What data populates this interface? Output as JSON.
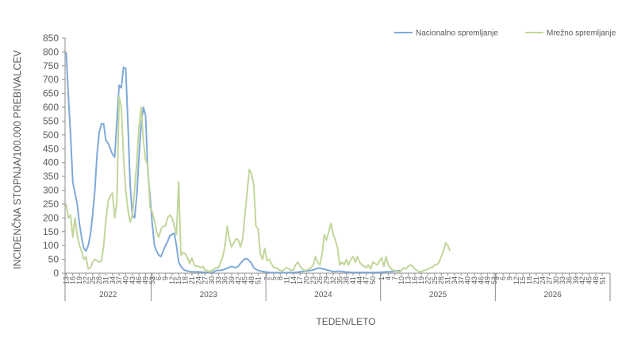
{
  "chart_data": {
    "type": "line",
    "ylabel": "INCIDENČNA  STOPNJA/100.000  PREBIVALCEV",
    "xlabel": "TEDEN/LETO",
    "ylim": [
      0,
      850
    ],
    "yticks": [
      0,
      50,
      100,
      150,
      200,
      250,
      300,
      350,
      400,
      450,
      500,
      550,
      600,
      650,
      700,
      750,
      800,
      850
    ],
    "grid": false,
    "legend_position": "top-right",
    "colors": {
      "Nacionalno spremljanje": "#7fa9d9",
      "Mrežno spremljanje": "#c2d69b"
    },
    "years": [
      {
        "label": "2022",
        "weeks": 39
      },
      {
        "label": "2023",
        "weeks": 52
      },
      {
        "label": "2024",
        "weeks": 52
      },
      {
        "label": "2025",
        "weeks": 52
      },
      {
        "label": "2026",
        "weeks": 52
      }
    ],
    "x_tick_labels": [
      [
        "13",
        "16",
        "19",
        "22",
        "25",
        "28",
        "31",
        "34",
        "37",
        "40",
        "43",
        "46",
        "49",
        "52"
      ],
      [
        "3",
        "6",
        "9",
        "12",
        "15",
        "18",
        "21",
        "24",
        "27",
        "30",
        "33",
        "36",
        "39",
        "42",
        "45",
        "48",
        "51"
      ],
      [
        "2",
        "5",
        "8",
        "11",
        "14",
        "17",
        "20",
        "23",
        "26",
        "29",
        "32",
        "35",
        "38",
        "41",
        "44",
        "47",
        "50"
      ],
      [
        "1",
        "4",
        "7",
        "10",
        "13",
        "16",
        "19",
        "22",
        "25",
        "28",
        "31",
        "34",
        "37",
        "40",
        "43",
        "46",
        "49",
        "52"
      ],
      [
        "3",
        "6",
        "9",
        "12",
        "15",
        "18",
        "21",
        "24",
        "27",
        "30",
        "33",
        "36",
        "39",
        "42",
        "45",
        "48",
        "51"
      ]
    ],
    "series": [
      {
        "name": "Nacionalno spremljanje",
        "values": [
          800,
          640,
          500,
          330,
          290,
          250,
          180,
          130,
          90,
          80,
          100,
          140,
          210,
          300,
          430,
          510,
          540,
          540,
          480,
          470,
          450,
          430,
          420,
          550,
          680,
          670,
          745,
          740,
          540,
          320,
          210,
          200,
          280,
          420,
          540,
          600,
          570,
          370,
          280,
          180,
          100,
          80,
          65,
          60,
          80,
          100,
          115,
          135,
          140,
          145,
          100,
          40,
          25,
          15,
          10,
          8,
          6,
          5,
          5,
          5,
          5,
          4,
          4,
          3,
          3,
          3,
          3,
          5,
          10,
          10,
          10,
          12,
          15,
          18,
          22,
          24,
          22,
          20,
          25,
          35,
          45,
          52,
          52,
          45,
          35,
          20,
          14,
          10,
          8,
          6,
          5,
          4,
          3,
          2,
          2,
          2,
          2,
          2,
          2,
          2,
          2,
          2,
          3,
          3,
          3,
          4,
          5,
          6,
          7,
          8,
          9,
          10,
          12,
          15,
          18,
          18,
          16,
          15,
          12,
          10,
          8,
          6,
          6,
          7,
          7,
          6,
          5,
          4,
          4,
          3,
          3,
          3,
          3,
          3,
          3,
          3,
          3,
          3,
          3,
          3,
          3,
          3,
          3,
          4,
          4,
          5,
          5,
          5,
          6,
          7,
          8,
          9,
          9
        ]
      },
      {
        "name": "Mrežno spremljanje",
        "values": [
          250,
          200,
          210,
          130,
          200,
          140,
          100,
          80,
          50,
          60,
          15,
          20,
          40,
          50,
          45,
          40,
          45,
          100,
          190,
          260,
          280,
          290,
          200,
          260,
          640,
          600,
          420,
          300,
          230,
          185,
          210,
          300,
          400,
          530,
          600,
          480,
          410,
          390,
          240,
          220,
          190,
          150,
          130,
          160,
          170,
          170,
          200,
          210,
          200,
          170,
          140,
          330,
          65,
          75,
          70,
          55,
          35,
          55,
          30,
          25,
          25,
          20,
          25,
          10,
          10,
          5,
          10,
          15,
          20,
          20,
          40,
          60,
          100,
          170,
          120,
          95,
          110,
          125,
          120,
          95,
          125,
          210,
          290,
          375,
          360,
          320,
          170,
          160,
          70,
          50,
          90,
          45,
          50,
          35,
          20,
          20,
          15,
          10,
          8,
          15,
          20,
          15,
          10,
          12,
          30,
          40,
          25,
          15,
          10,
          12,
          15,
          20,
          30,
          60,
          40,
          30,
          70,
          140,
          120,
          150,
          180,
          140,
          120,
          90,
          30,
          40,
          30,
          50,
          30,
          50,
          60,
          40,
          60,
          40,
          30,
          25,
          20,
          30,
          15,
          40,
          35,
          30,
          45,
          55,
          25,
          60,
          30,
          20,
          10,
          10,
          5,
          5,
          10,
          20,
          15,
          25,
          30,
          25,
          15,
          10,
          5,
          5,
          10,
          10,
          15,
          20,
          20,
          30,
          30,
          40,
          60,
          80,
          110,
          100,
          80
        ]
      }
    ]
  }
}
